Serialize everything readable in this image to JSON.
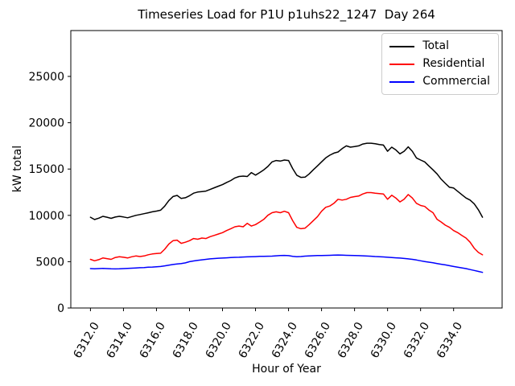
{
  "title": "Timeseries Load for P1U p1uhs22_1247  Day 264",
  "chart_data": {
    "type": "line",
    "title": "Timeseries Load for P1U p1uhs22_1247  Day 264",
    "xlabel": "Hour of Year",
    "ylabel": "kW total",
    "grid": false,
    "legend_position": "upper right",
    "xlim": [
      6310.81,
      6336.94
    ],
    "ylim": [
      0,
      29950
    ],
    "xticks": [
      6312,
      6314,
      6316,
      6318,
      6320,
      6322,
      6324,
      6326,
      6328,
      6330,
      6332,
      6334
    ],
    "xtick_labels": [
      "6312.0",
      "6314.0",
      "6316.0",
      "6318.0",
      "6320.0",
      "6322.0",
      "6324.0",
      "6326.0",
      "6328.0",
      "6330.0",
      "6332.0",
      "6334.0"
    ],
    "yticks": [
      0,
      5000,
      10000,
      15000,
      20000,
      25000
    ],
    "ytick_labels": [
      "0",
      "5000",
      "10000",
      "15000",
      "20000",
      "25000"
    ],
    "x": [
      6312.0,
      6312.25,
      6312.5,
      6312.75,
      6313.0,
      6313.25,
      6313.5,
      6313.75,
      6314.0,
      6314.25,
      6314.5,
      6314.75,
      6315.0,
      6315.25,
      6315.5,
      6315.75,
      6316.0,
      6316.25,
      6316.5,
      6316.75,
      6317.0,
      6317.25,
      6317.5,
      6317.75,
      6318.0,
      6318.25,
      6318.5,
      6318.75,
      6319.0,
      6319.25,
      6319.5,
      6319.75,
      6320.0,
      6320.25,
      6320.5,
      6320.75,
      6321.0,
      6321.25,
      6321.5,
      6321.75,
      6322.0,
      6322.25,
      6322.5,
      6322.75,
      6323.0,
      6323.25,
      6323.5,
      6323.75,
      6324.0,
      6324.25,
      6324.5,
      6324.75,
      6325.0,
      6325.25,
      6325.5,
      6325.75,
      6326.0,
      6326.25,
      6326.5,
      6326.75,
      6327.0,
      6327.25,
      6327.5,
      6327.75,
      6328.0,
      6328.25,
      6328.5,
      6328.75,
      6329.0,
      6329.25,
      6329.5,
      6329.75,
      6330.0,
      6330.25,
      6330.5,
      6330.75,
      6331.0,
      6331.25,
      6331.5,
      6331.75,
      6332.0,
      6332.25,
      6332.5,
      6332.75,
      6333.0,
      6333.25,
      6333.5,
      6333.75,
      6334.0,
      6334.25,
      6334.5,
      6334.75,
      6335.0,
      6335.25,
      6335.5,
      6335.75
    ],
    "series": [
      {
        "name": "Total",
        "color": "#000000",
        "values": [
          9800,
          9550,
          9700,
          9900,
          9800,
          9680,
          9820,
          9900,
          9830,
          9740,
          9870,
          10000,
          10090,
          10180,
          10280,
          10380,
          10460,
          10560,
          11000,
          11600,
          12030,
          12150,
          11820,
          11900,
          12120,
          12400,
          12520,
          12570,
          12620,
          12800,
          12980,
          13150,
          13320,
          13550,
          13760,
          14040,
          14190,
          14240,
          14190,
          14620,
          14340,
          14620,
          14910,
          15280,
          15770,
          15920,
          15860,
          15970,
          15920,
          15050,
          14330,
          14100,
          14120,
          14470,
          14910,
          15340,
          15770,
          16200,
          16490,
          16720,
          16840,
          17210,
          17500,
          17360,
          17420,
          17500,
          17700,
          17790,
          17790,
          17730,
          17650,
          17590,
          16920,
          17360,
          17070,
          16640,
          16920,
          17400,
          16920,
          16200,
          15970,
          15770,
          15340,
          14910,
          14470,
          13900,
          13460,
          13030,
          12950,
          12600,
          12230,
          11880,
          11650,
          11250,
          10600,
          9800
        ]
      },
      {
        "name": "Residential",
        "color": "#ff0000",
        "values": [
          5250,
          5100,
          5220,
          5400,
          5330,
          5250,
          5450,
          5530,
          5480,
          5400,
          5530,
          5620,
          5560,
          5620,
          5750,
          5830,
          5880,
          5910,
          6350,
          6900,
          7270,
          7330,
          6980,
          7100,
          7270,
          7500,
          7420,
          7550,
          7500,
          7700,
          7840,
          7990,
          8130,
          8360,
          8560,
          8770,
          8850,
          8770,
          9140,
          8850,
          9000,
          9280,
          9570,
          10010,
          10290,
          10380,
          10290,
          10440,
          10290,
          9430,
          8710,
          8560,
          8620,
          9000,
          9430,
          9860,
          10440,
          10870,
          11010,
          11300,
          11740,
          11650,
          11740,
          11940,
          12020,
          12080,
          12310,
          12460,
          12460,
          12400,
          12350,
          12310,
          11740,
          12170,
          11880,
          11450,
          11740,
          12250,
          11880,
          11300,
          11070,
          10960,
          10580,
          10290,
          9570,
          9280,
          8940,
          8710,
          8360,
          8130,
          7840,
          7550,
          7100,
          6460,
          6000,
          5740
        ]
      },
      {
        "name": "Commercial",
        "color": "#0000ff",
        "values": [
          4250,
          4230,
          4250,
          4270,
          4250,
          4230,
          4220,
          4230,
          4250,
          4270,
          4300,
          4320,
          4350,
          4370,
          4400,
          4420,
          4450,
          4480,
          4550,
          4630,
          4700,
          4750,
          4800,
          4870,
          5000,
          5080,
          5150,
          5200,
          5250,
          5300,
          5340,
          5370,
          5390,
          5420,
          5450,
          5470,
          5480,
          5500,
          5520,
          5530,
          5550,
          5570,
          5580,
          5590,
          5600,
          5630,
          5660,
          5680,
          5650,
          5580,
          5540,
          5560,
          5600,
          5620,
          5640,
          5660,
          5670,
          5680,
          5690,
          5700,
          5720,
          5700,
          5690,
          5680,
          5660,
          5650,
          5630,
          5610,
          5590,
          5560,
          5540,
          5510,
          5480,
          5450,
          5420,
          5390,
          5350,
          5300,
          5250,
          5180,
          5100,
          5020,
          4950,
          4880,
          4800,
          4720,
          4650,
          4570,
          4480,
          4400,
          4330,
          4250,
          4150,
          4050,
          3950,
          3850
        ]
      }
    ]
  }
}
